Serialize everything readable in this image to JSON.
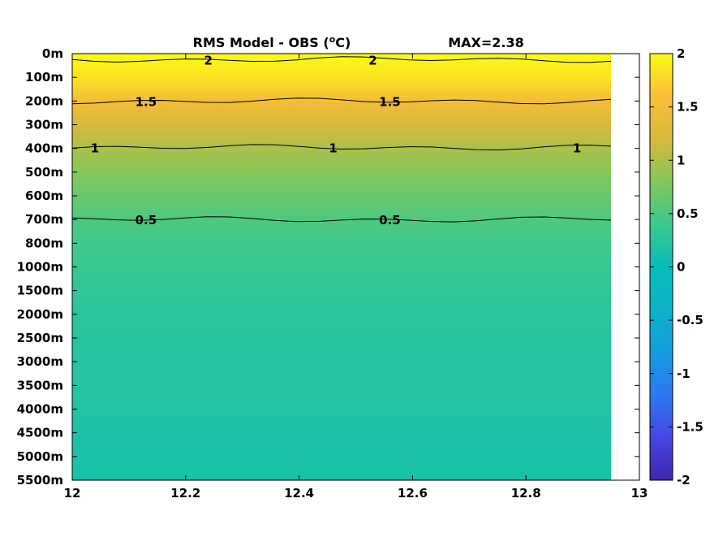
{
  "chart_data": {
    "type": "heatmap",
    "title": "RMS Model - OBS (",
    "title_unit_sup": "o",
    "title_unit_rest": "C)",
    "max_annotation": "MAX=2.38",
    "x_ticks": [
      "12",
      "12.2",
      "12.4",
      "12.6",
      "12.8",
      "13"
    ],
    "xlim": [
      12,
      13
    ],
    "data_x_end": 12.95,
    "y_ticks": [
      "0m",
      "100m",
      "200m",
      "300m",
      "400m",
      "500m",
      "600m",
      "700m",
      "800m",
      "1000m",
      "1500m",
      "2000m",
      "2500m",
      "3000m",
      "3500m",
      "4000m",
      "4500m",
      "5000m",
      "5500m"
    ],
    "colorbar": {
      "ticks": [
        "2",
        "1.5",
        "1",
        "0.5",
        "0",
        "-0.5",
        "-1",
        "-1.5",
        "-2"
      ],
      "range": [
        -2,
        2
      ],
      "colormap": "parula"
    },
    "depth_profile": [
      {
        "depth": "0m",
        "value": 2.05
      },
      {
        "depth": "100m",
        "value": 1.85
      },
      {
        "depth": "200m",
        "value": 1.5
      },
      {
        "depth": "300m",
        "value": 1.22
      },
      {
        "depth": "400m",
        "value": 0.99
      },
      {
        "depth": "500m",
        "value": 0.82
      },
      {
        "depth": "600m",
        "value": 0.65
      },
      {
        "depth": "700m",
        "value": 0.5
      },
      {
        "depth": "800m",
        "value": 0.42
      },
      {
        "depth": "1000m",
        "value": 0.36
      },
      {
        "depth": "1500m",
        "value": 0.3
      },
      {
        "depth": "2000m",
        "value": 0.25
      },
      {
        "depth": "2500m",
        "value": 0.24
      },
      {
        "depth": "3000m",
        "value": 0.23
      },
      {
        "depth": "3500m",
        "value": 0.22
      },
      {
        "depth": "4000m",
        "value": 0.21
      },
      {
        "depth": "4500m",
        "value": 0.17
      },
      {
        "depth": "5000m",
        "value": 0.15
      },
      {
        "depth": "5500m",
        "value": 0.14
      }
    ],
    "contours": [
      {
        "level": "2",
        "label_at": [
          12.24,
          12.53
        ]
      },
      {
        "level": "1.5",
        "label_at": [
          12.13,
          12.56
        ]
      },
      {
        "level": "1",
        "label_at": [
          12.04,
          12.46,
          12.89
        ]
      },
      {
        "level": "0.5",
        "label_at": [
          12.13,
          12.56
        ]
      }
    ]
  }
}
